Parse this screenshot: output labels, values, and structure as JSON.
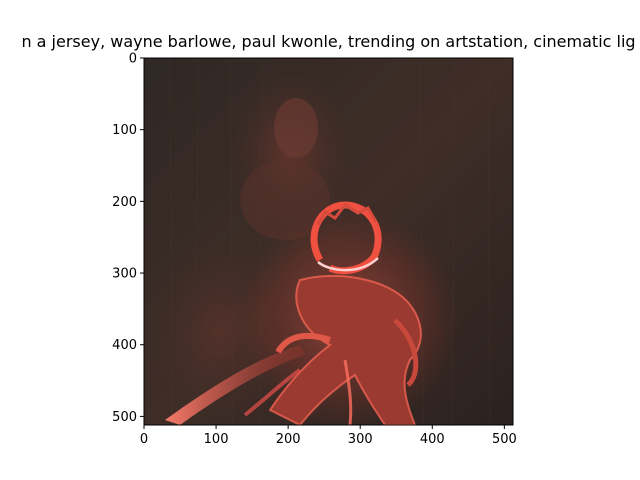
{
  "chart_data": {
    "type": "image",
    "title": "n a jersey,  wayne barlowe, paul kwonle,  trending on artstation, cinematic lig",
    "xlabel": "",
    "ylabel": "",
    "xlim": [
      0,
      512
    ],
    "ylim": [
      512,
      0
    ],
    "xticks": [
      0,
      100,
      200,
      300,
      400,
      500
    ],
    "yticks": [
      0,
      100,
      200,
      300,
      400,
      500
    ],
    "grid": false,
    "image": {
      "description": "dark painted scene with a glowing red horned creature lit by red light",
      "background_color": "#3a2c26",
      "accent_color": "#e8504a"
    }
  }
}
